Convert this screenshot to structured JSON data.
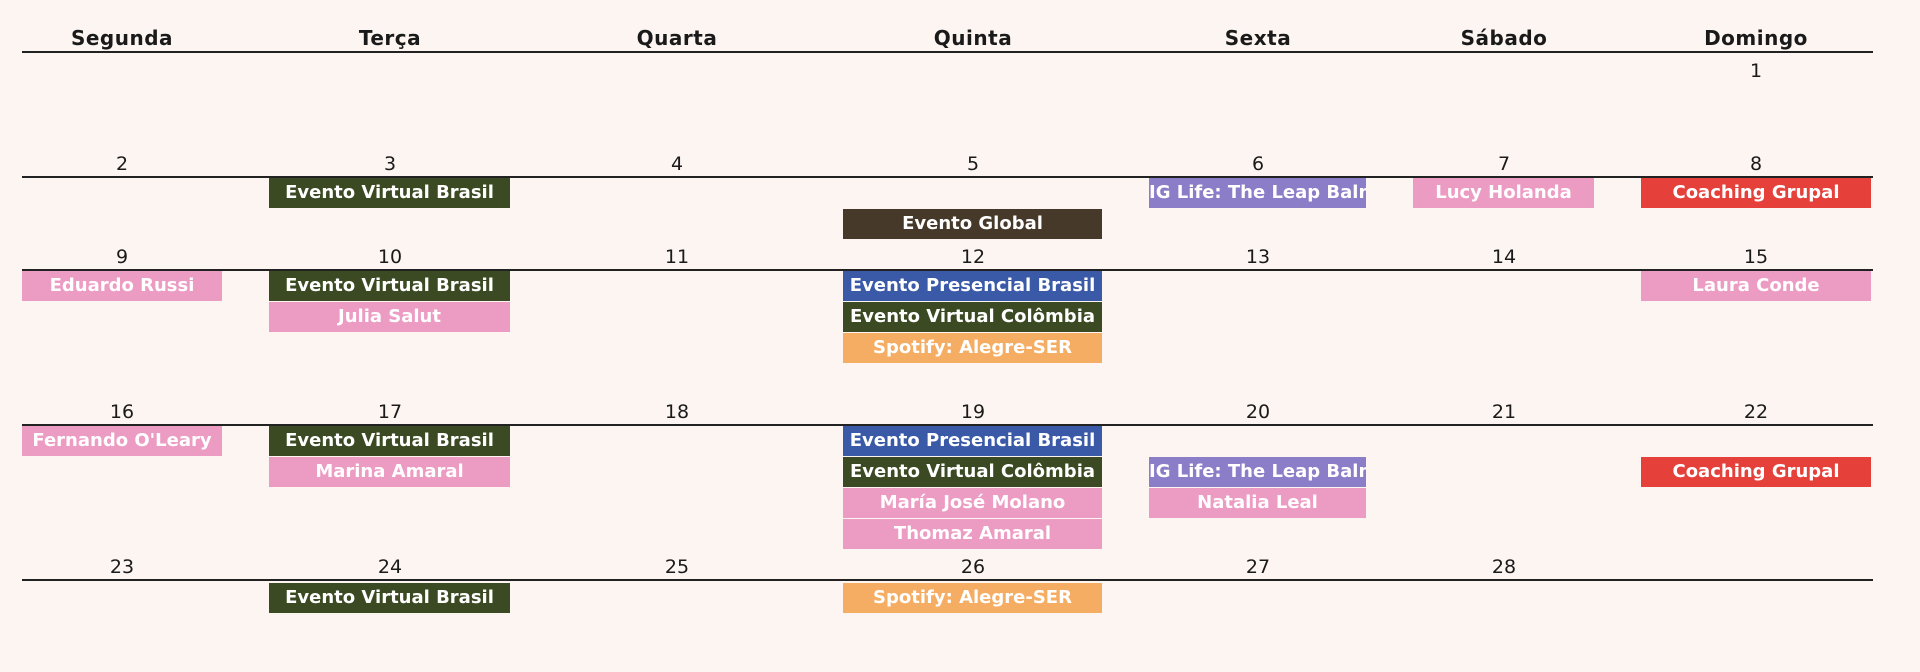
{
  "weekdays": [
    "Segunda",
    "Terça",
    "Quarta",
    "Quinta",
    "Sexta",
    "Sábado",
    "Domingo"
  ],
  "colors": {
    "virtual_brasil": "#3b4a22",
    "global": "#47392a",
    "presencial_brasil": "#3a5aa8",
    "virtual_colombia": "#3b4a22",
    "spotify": "#f4ad63",
    "ig_life": "#8b7dc7",
    "pink": "#ec9bc3",
    "coaching": "#e5403a"
  },
  "days": {
    "d1": "1",
    "d2": "2",
    "d3": "3",
    "d4": "4",
    "d5": "5",
    "d6": "6",
    "d7": "7",
    "d8": "8",
    "d9": "9",
    "d10": "10",
    "d11": "11",
    "d12": "12",
    "d13": "13",
    "d14": "14",
    "d15": "15",
    "d16": "16",
    "d17": "17",
    "d18": "18",
    "d19": "19",
    "d20": "20",
    "d21": "21",
    "d22": "22",
    "d23": "23",
    "d24": "24",
    "d25": "25",
    "d26": "26",
    "d27": "27",
    "d28": "28"
  },
  "events": {
    "e3a": "Evento Virtual Brasil",
    "e5a": "Evento Global",
    "e6a": "IG Life: The Leap Balm",
    "e7a": "Lucy Holanda",
    "e8a": "Coaching Grupal",
    "e9a": "Eduardo Russi",
    "e10a": "Evento Virtual Brasil",
    "e10b": "Julia Salut",
    "e12a": "Evento Presencial Brasil",
    "e12b": "Evento Virtual Colômbia",
    "e12c": "Spotify: Alegre-SER",
    "e15a": "Laura Conde",
    "e16a": "Fernando O'Leary",
    "e17a": "Evento Virtual Brasil",
    "e17b": "Marina Amaral",
    "e19a": "Evento Presencial Brasil",
    "e19b": "Evento Virtual Colômbia",
    "e19c": "María José Molano",
    "e19d": "Thomaz Amaral",
    "e20a": "IG Life: The Leap Balm",
    "e20b": "Natalia Leal",
    "e22a": "Coaching Grupal",
    "e24a": "Evento Virtual Brasil",
    "e26a": "Spotify: Alegre-SER"
  }
}
